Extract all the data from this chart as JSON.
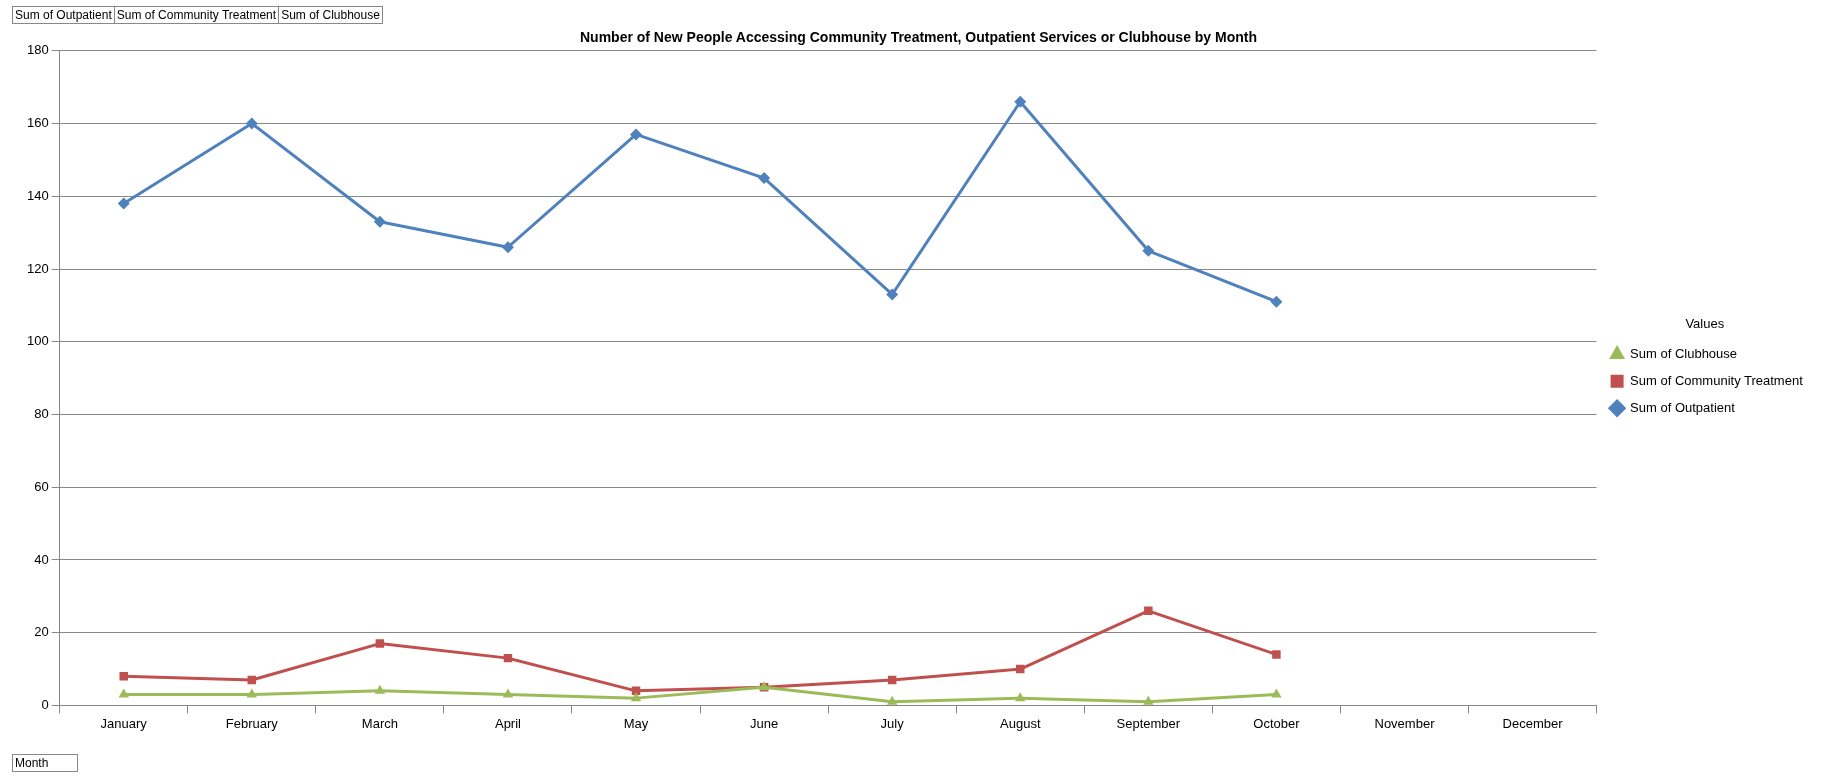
{
  "chart_data": {
    "type": "line",
    "title": "Number of New People Accessing Community Treatment, Outpatient Services or Clubhouse by Month",
    "xlabel": "Month",
    "legend_title": "Values",
    "legend": "right",
    "annotations": [
      "Sum of Outpatient",
      "Sum of Community Treatment",
      "Sum of Clubhouse"
    ],
    "categories": [
      "January",
      "February",
      "March",
      "April",
      "May",
      "June",
      "July",
      "August",
      "September",
      "October",
      "November",
      "December"
    ],
    "ylim": [
      0,
      180
    ],
    "yticks": [
      0,
      20,
      40,
      60,
      80,
      100,
      120,
      140,
      160,
      180
    ],
    "grid": "y",
    "line_style": "solid",
    "series": [
      {
        "name": "Sum of Outpatient",
        "color": "#4f81bd",
        "marker": "diamond",
        "values": [
          138,
          160,
          133,
          126,
          157,
          145,
          113,
          166,
          125,
          111,
          null,
          null
        ]
      },
      {
        "name": "Sum of Community Treatment",
        "color": "#c0504d",
        "marker": "square",
        "values": [
          8,
          7,
          17,
          13,
          4,
          5,
          7,
          10,
          26,
          14,
          null,
          null
        ]
      },
      {
        "name": "Sum of Clubhouse",
        "color": "#9bbb59",
        "marker": "triangle",
        "values": [
          3,
          3,
          4,
          3,
          2,
          5,
          1,
          2,
          1,
          3,
          null,
          null
        ]
      }
    ]
  }
}
